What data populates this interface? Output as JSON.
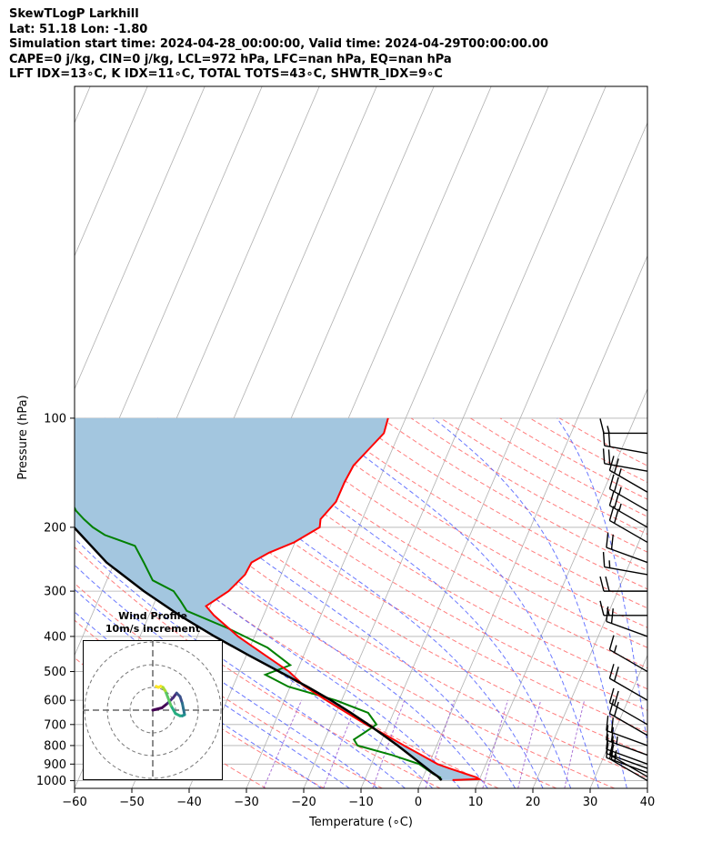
{
  "header": {
    "line1": "SkewTLogP Larkhill",
    "line2": "Lat: 51.18   Lon: -1.80",
    "line3": "Simulation start time: 2024-04-28_00:00:00, Valid time: 2024-04-29T00:00:00.00",
    "line4": "CAPE=0 j/kg, CIN=0 j/kg, LCL=972 hPa, LFC=nan hPa, EQ=nan hPa",
    "line5": "LFT IDX=13∘C, K IDX=11∘C, TOTAL TOTS=43∘C, SHWTR_IDX=9∘C"
  },
  "inset": {
    "title": "Wind Profile",
    "subtitle": "10m/s increment"
  },
  "chart_data": {
    "type": "line",
    "subtype": "skew-T log-P",
    "xlabel": "Temperature (∘C)",
    "ylabel": "Pressure (hPa)",
    "xlim": [
      -60,
      40
    ],
    "ylim": [
      1050,
      100
    ],
    "xticks": [
      -60,
      -50,
      -40,
      -30,
      -20,
      -10,
      0,
      10,
      20,
      30,
      40
    ],
    "xtick_labels": [
      "−60",
      "−50",
      "−40",
      "−30",
      "−20",
      "−10",
      "0",
      "10",
      "20",
      "30",
      "40"
    ],
    "yticks": [
      1000,
      900,
      800,
      700,
      600,
      500,
      400,
      300,
      200,
      100
    ],
    "ytick_labels": [
      "1000",
      "900",
      "800",
      "700",
      "600",
      "500",
      "400",
      "300",
      "200",
      "100"
    ],
    "y_scale": "log",
    "grid": true,
    "colors": {
      "temperature": "#ff0000",
      "dewpoint": "#008000",
      "parcel": "#000000",
      "fill": "#a3c6df",
      "dry_adiabats": "#ff6666",
      "moist_adiabats": "#4455ff",
      "mixing_ratio": "#9955cc",
      "isotherms": "#b0b0b0",
      "barbs": "#000000"
    },
    "series": [
      {
        "role": "temperature",
        "pressure": [
          996,
          990,
          980,
          960,
          925,
          900,
          850,
          800,
          750,
          700,
          650,
          600,
          550,
          500,
          450,
          400,
          350,
          330,
          300,
          270,
          250,
          235,
          220,
          200,
          190,
          170,
          150,
          135,
          120,
          110,
          100
        ],
        "temperature": [
          4.8,
          9.3,
          8.7,
          6.5,
          2.6,
          -0.1,
          -4.2,
          -8.6,
          -13.1,
          -18.2,
          -23.2,
          -28.6,
          -34.3,
          -39.2,
          -45.8,
          -53.1,
          -60.3,
          -63.0,
          -61.2,
          -60.7,
          -61.3,
          -59.6,
          -56.7,
          -54.4,
          -55.4,
          -55.2,
          -56.5,
          -57.3,
          -56.9,
          -56.6,
          -58.0
        ]
      },
      {
        "role": "dewpoint",
        "pressure": [
          996,
          980,
          960,
          900,
          850,
          800,
          770,
          740,
          700,
          650,
          600,
          550,
          510,
          480,
          430,
          380,
          340,
          320,
          300,
          280,
          250,
          225,
          210,
          200,
          190,
          180,
          160,
          140,
          120,
          100
        ],
        "temperature": [
          2.6,
          2.3,
          0.7,
          -3.3,
          -9.3,
          -16.7,
          -18.2,
          -17.4,
          -16.4,
          -19.5,
          -27.0,
          -37.2,
          -42.9,
          -39.9,
          -46.3,
          -56.0,
          -65.7,
          -68.1,
          -70.8,
          -76.0,
          -80.1,
          -84.0,
          -90.8,
          -94.0,
          -96.7,
          -99.3,
          -103.6,
          -109.1,
          -114.7,
          -118.2
        ]
      },
      {
        "role": "parcel",
        "pressure": [
          996,
          972,
          950,
          900,
          850,
          800,
          750,
          700,
          650,
          600,
          550,
          500,
          450,
          400,
          350,
          300,
          250,
          200,
          150,
          120,
          100
        ],
        "temperature": [
          2.9,
          1.6,
          0.2,
          -2.9,
          -6.2,
          -9.7,
          -13.6,
          -17.8,
          -22.5,
          -27.8,
          -33.9,
          -40.9,
          -48.7,
          -57.2,
          -66.3,
          -76.0,
          -86.6,
          -97.3,
          -109.8,
          -117.6,
          -123.2
        ]
      }
    ],
    "wind_barbs": {
      "pressure": [
        1000,
        975,
        950,
        925,
        900,
        850,
        800,
        750,
        700,
        600,
        500,
        400,
        350,
        300,
        270,
        250,
        220,
        200,
        180,
        160,
        140,
        125,
        110
      ],
      "speed_kt": [
        15,
        15,
        20,
        20,
        20,
        25,
        20,
        20,
        20,
        20,
        15,
        20,
        15,
        20,
        15,
        20,
        20,
        25,
        25,
        25,
        20,
        20,
        15
      ],
      "direction_deg": [
        300,
        300,
        290,
        290,
        290,
        290,
        290,
        300,
        300,
        300,
        300,
        290,
        270,
        270,
        280,
        290,
        300,
        300,
        300,
        300,
        280,
        280,
        270
      ]
    },
    "hodograph": {
      "rings_ms": [
        10,
        20,
        30
      ],
      "u_ms": [
        0.0,
        4.0,
        6.5,
        9.0,
        10.5,
        12.0,
        13.0,
        13.5,
        14.0,
        13.0,
        12.0,
        10.0,
        8.0,
        6.5,
        5.5,
        4.5,
        3.5,
        2.5,
        1.5
      ],
      "v_ms": [
        0.0,
        1.0,
        3.0,
        5.5,
        7.5,
        6.0,
        3.0,
        0.5,
        -2.0,
        -2.5,
        -2.5,
        -1.5,
        2.0,
        6.0,
        8.5,
        10.0,
        10.5,
        10.0,
        10.5
      ]
    }
  }
}
